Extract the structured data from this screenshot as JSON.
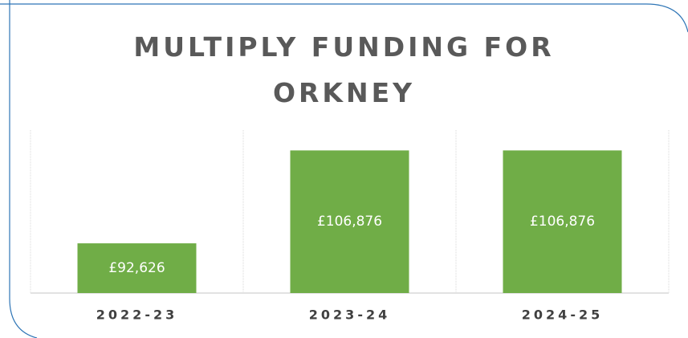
{
  "chart_data": {
    "type": "bar",
    "title": "MULTIPLY FUNDING FOR ORKNEY",
    "categories": [
      "2022-23",
      "2023-24",
      "2024-25"
    ],
    "values": [
      92626,
      106876,
      106876
    ],
    "value_labels": [
      "£92,626",
      "£106,876",
      "£106,876"
    ],
    "color": "#70ad47",
    "ylim": [
      85000,
      110000
    ]
  }
}
